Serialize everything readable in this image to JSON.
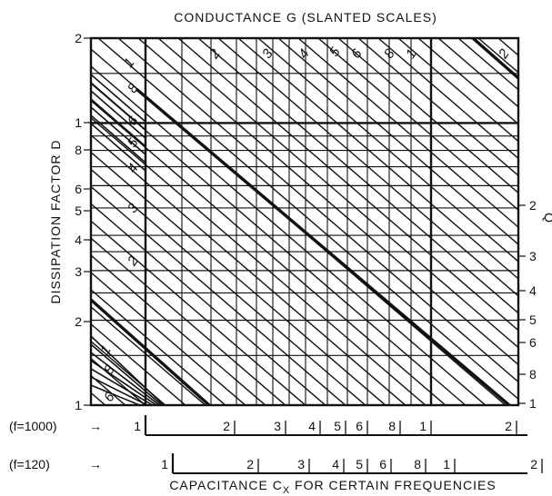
{
  "chart_data": {
    "type": "nomogram",
    "title": "CONDUCTANCE G   (SLANTED SCALES)",
    "xlabel": "CAPACITANCE C",
    "xlabel_sub": "X",
    "xlabel_suffix": " FOR CERTAIN FREQUENCIES",
    "ylabel_left": "DISSIPATION FACTOR D",
    "ylabel_right": "Q",
    "left_axis": {
      "scale": "log",
      "ylim": [
        1,
        20
      ],
      "ticks": [
        "2",
        "1",
        "8",
        "6",
        "5",
        "4",
        "3",
        "2",
        "1"
      ],
      "tick_values": [
        20,
        10,
        8,
        6,
        5,
        4,
        3,
        2,
        1
      ]
    },
    "right_axis": {
      "scale": "log",
      "ticks": [
        "2",
        "3",
        "4",
        "5",
        "6",
        "8",
        "1"
      ],
      "tick_values": [
        2,
        3,
        4,
        5,
        6,
        8,
        10
      ]
    },
    "freq_scales": [
      {
        "label": "(f=1000)",
        "arrow": "→",
        "ticks": [
          "1",
          "2",
          "3",
          "4",
          "5",
          "6",
          "8",
          "1",
          "2"
        ],
        "tick_values": [
          1,
          2,
          3,
          4,
          5,
          6,
          8,
          10,
          20
        ]
      },
      {
        "label": "(f=120)",
        "arrow": "→",
        "ticks": [
          "1",
          "2",
          "3",
          "4",
          "5",
          "6",
          "8",
          "1",
          "2"
        ],
        "tick_values": [
          1,
          2,
          3,
          4,
          5,
          6,
          8,
          10,
          20
        ]
      }
    ],
    "slanted_scale_labels": [
      "1",
      "8",
      "6",
      "5",
      "4",
      "3",
      "2",
      "1",
      "8",
      "6",
      "2",
      "3",
      "4",
      "5",
      "6",
      "8",
      "1",
      "2"
    ],
    "grid": true
  }
}
